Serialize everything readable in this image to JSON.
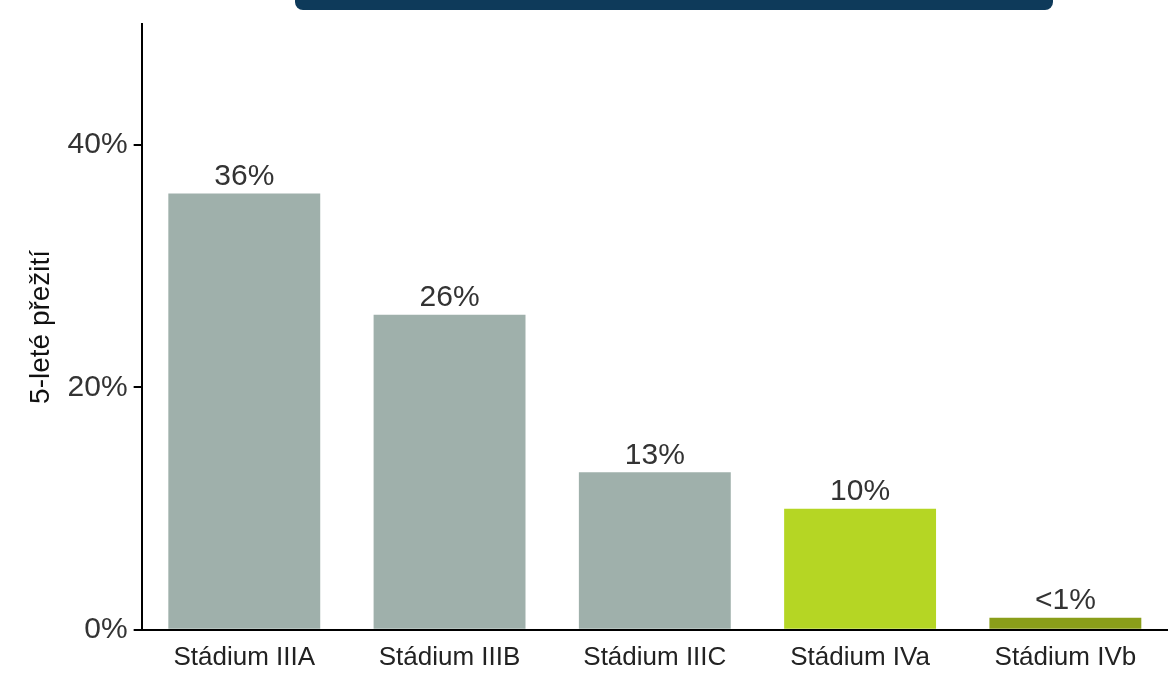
{
  "chart_data": {
    "type": "bar",
    "ylabel": "5-leté přežití",
    "categories": [
      "Stádium IIIA",
      "Stádium IIIB",
      "Stádium IIIC",
      "Stádium IVa",
      "Stádium IVb"
    ],
    "values": [
      36,
      26,
      13,
      10,
      1
    ],
    "colors": [
      "#9fb0ab",
      "#9fb0ab",
      "#9fb0ab",
      "#b5d624",
      "#8a9e1a"
    ],
    "value_labels": [
      "36%",
      "26%",
      "13%",
      "10%",
      "<1%"
    ],
    "ylim": [
      0,
      50
    ],
    "yticks": [
      {
        "value": 0,
        "label": "0%"
      },
      {
        "value": 20,
        "label": "20%"
      },
      {
        "value": 40,
        "label": "40%"
      }
    ],
    "grid": false,
    "legend": false
  }
}
